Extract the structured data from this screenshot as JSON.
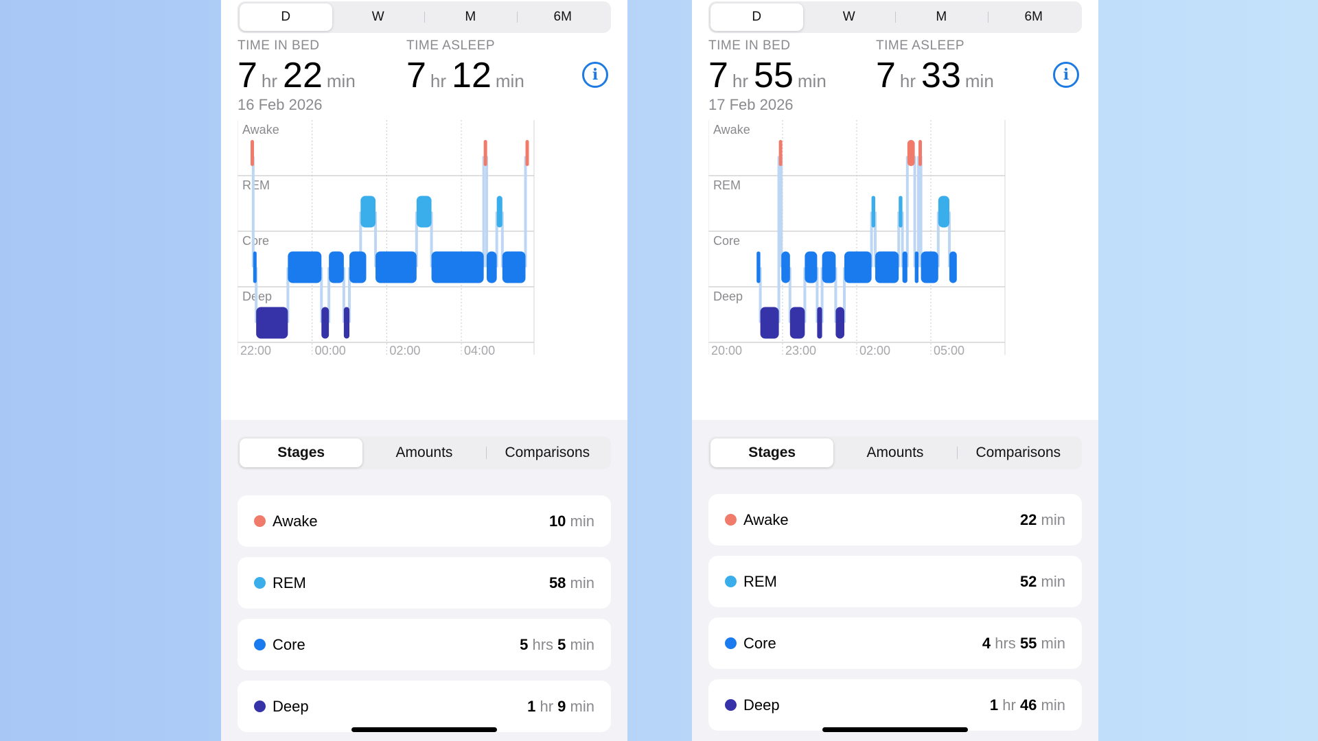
{
  "colors": {
    "awake": "#f07b6a",
    "rem": "#3aaeea",
    "core": "#1a7bef",
    "deep": "#3632a8",
    "accent": "#1d7ae3"
  },
  "panels": [
    {
      "period_tabs": [
        "D",
        "W",
        "M",
        "6M"
      ],
      "active_period": "D",
      "time_in_bed": {
        "label": "TIME IN BED",
        "hours": "7",
        "hr_unit": "hr",
        "minutes": "22",
        "min_unit": "min"
      },
      "time_asleep": {
        "label": "TIME ASLEEP",
        "hours": "7",
        "hr_unit": "hr",
        "minutes": "12",
        "min_unit": "min"
      },
      "date": "16 Feb 2026",
      "chart_data": {
        "type": "timeline",
        "stages": [
          "Awake",
          "REM",
          "Core",
          "Deep"
        ],
        "x_ticks": [
          {
            "label": "22:00",
            "hour": 0
          },
          {
            "label": "00:00",
            "hour": 2
          },
          {
            "label": "02:00",
            "hour": 4
          },
          {
            "label": "04:00",
            "hour": 6
          }
        ],
        "x_range_hours": [
          0,
          7.95
        ],
        "segments": [
          {
            "stage": "Awake",
            "start": 0.35,
            "end": 0.42
          },
          {
            "stage": "Core",
            "start": 0.42,
            "end": 0.5
          },
          {
            "stage": "Deep",
            "start": 0.5,
            "end": 1.35
          },
          {
            "stage": "Core",
            "start": 1.35,
            "end": 2.25
          },
          {
            "stage": "Deep",
            "start": 2.25,
            "end": 2.45
          },
          {
            "stage": "Core",
            "start": 2.45,
            "end": 2.85
          },
          {
            "stage": "Deep",
            "start": 2.85,
            "end": 3.0
          },
          {
            "stage": "Core",
            "start": 3.0,
            "end": 3.45
          },
          {
            "stage": "REM",
            "start": 3.3,
            "end": 3.7
          },
          {
            "stage": "Core",
            "start": 3.7,
            "end": 4.8
          },
          {
            "stage": "REM",
            "start": 4.8,
            "end": 5.2
          },
          {
            "stage": "Core",
            "start": 5.2,
            "end": 6.6
          },
          {
            "stage": "Awake",
            "start": 6.6,
            "end": 6.68
          },
          {
            "stage": "Core",
            "start": 6.68,
            "end": 6.95
          },
          {
            "stage": "REM",
            "start": 6.95,
            "end": 7.1
          },
          {
            "stage": "Core",
            "start": 7.1,
            "end": 7.72
          },
          {
            "stage": "Awake",
            "start": 7.72,
            "end": 7.78
          }
        ]
      },
      "detail_tabs": [
        "Stages",
        "Amounts",
        "Comparisons"
      ],
      "active_detail": "Stages",
      "stages": [
        {
          "name": "Awake",
          "parts": [
            {
              "n": "10",
              "u": "min"
            }
          ]
        },
        {
          "name": "REM",
          "parts": [
            {
              "n": "58",
              "u": "min"
            }
          ]
        },
        {
          "name": "Core",
          "parts": [
            {
              "n": "5",
              "u": "hrs"
            },
            {
              "n": "5",
              "u": "min"
            }
          ]
        },
        {
          "name": "Deep",
          "parts": [
            {
              "n": "1",
              "u": "hr"
            },
            {
              "n": "9",
              "u": "min"
            }
          ]
        }
      ]
    },
    {
      "period_tabs": [
        "D",
        "W",
        "M",
        "6M"
      ],
      "active_period": "D",
      "time_in_bed": {
        "label": "TIME IN BED",
        "hours": "7",
        "hr_unit": "hr",
        "minutes": "55",
        "min_unit": "min"
      },
      "time_asleep": {
        "label": "TIME ASLEEP",
        "hours": "7",
        "hr_unit": "hr",
        "minutes": "33",
        "min_unit": "min"
      },
      "date": "17 Feb 2026",
      "chart_data": {
        "type": "timeline",
        "stages": [
          "Awake",
          "REM",
          "Core",
          "Deep"
        ],
        "x_ticks": [
          {
            "label": "20:00",
            "hour": 0
          },
          {
            "label": "23:00",
            "hour": 3
          },
          {
            "label": "02:00",
            "hour": 6
          },
          {
            "label": "05:00",
            "hour": 9
          }
        ],
        "x_range_hours": [
          0,
          12
        ],
        "segments": [
          {
            "stage": "Core",
            "start": 1.95,
            "end": 2.1
          },
          {
            "stage": "Deep",
            "start": 2.1,
            "end": 2.85
          },
          {
            "stage": "Awake",
            "start": 2.85,
            "end": 2.95
          },
          {
            "stage": "Core",
            "start": 2.95,
            "end": 3.3
          },
          {
            "stage": "Deep",
            "start": 3.3,
            "end": 3.9
          },
          {
            "stage": "Core",
            "start": 3.9,
            "end": 4.4
          },
          {
            "stage": "Deep",
            "start": 4.4,
            "end": 4.6
          },
          {
            "stage": "Core",
            "start": 4.6,
            "end": 5.15
          },
          {
            "stage": "Deep",
            "start": 5.15,
            "end": 5.5
          },
          {
            "stage": "Core",
            "start": 5.5,
            "end": 6.6
          },
          {
            "stage": "REM",
            "start": 6.6,
            "end": 6.75
          },
          {
            "stage": "Core",
            "start": 6.75,
            "end": 7.7
          },
          {
            "stage": "REM",
            "start": 7.7,
            "end": 7.85
          },
          {
            "stage": "Core",
            "start": 7.85,
            "end": 8.05
          },
          {
            "stage": "Awake",
            "start": 8.05,
            "end": 8.35
          },
          {
            "stage": "Core",
            "start": 8.35,
            "end": 8.5
          },
          {
            "stage": "Awake",
            "start": 8.5,
            "end": 8.6
          },
          {
            "stage": "Core",
            "start": 8.6,
            "end": 9.3
          },
          {
            "stage": "REM",
            "start": 9.3,
            "end": 9.75
          },
          {
            "stage": "Core",
            "start": 9.75,
            "end": 10.05
          }
        ]
      },
      "detail_tabs": [
        "Stages",
        "Amounts",
        "Comparisons"
      ],
      "active_detail": "Stages",
      "stages": [
        {
          "name": "Awake",
          "parts": [
            {
              "n": "22",
              "u": "min"
            }
          ]
        },
        {
          "name": "REM",
          "parts": [
            {
              "n": "52",
              "u": "min"
            }
          ]
        },
        {
          "name": "Core",
          "parts": [
            {
              "n": "4",
              "u": "hrs"
            },
            {
              "n": "55",
              "u": "min"
            }
          ]
        },
        {
          "name": "Deep",
          "parts": [
            {
              "n": "1",
              "u": "hr"
            },
            {
              "n": "46",
              "u": "min"
            }
          ]
        }
      ]
    }
  ]
}
